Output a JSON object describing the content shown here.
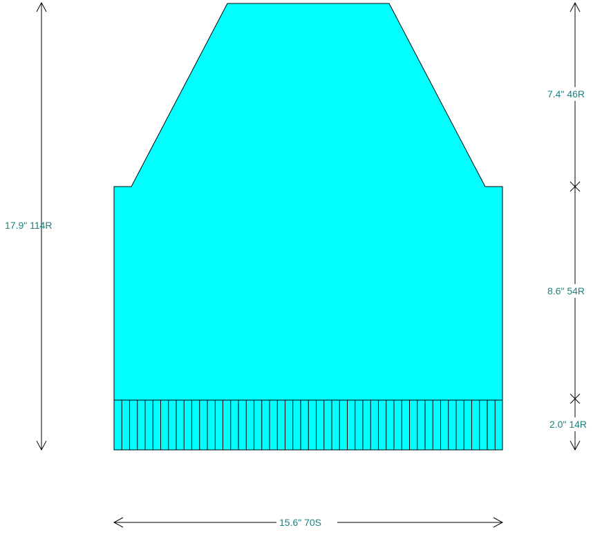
{
  "diagram": {
    "piece_color": "#00ffff",
    "outline_color": "#000000",
    "label_color": "#1a8080",
    "total_height_label": "17.9\" 114R",
    "width_label": "15.6\" 70S",
    "sections": [
      {
        "label": "7.4\" 46R"
      },
      {
        "label": "8.6\" 54R"
      },
      {
        "label": "2.0\" 14R"
      }
    ]
  }
}
